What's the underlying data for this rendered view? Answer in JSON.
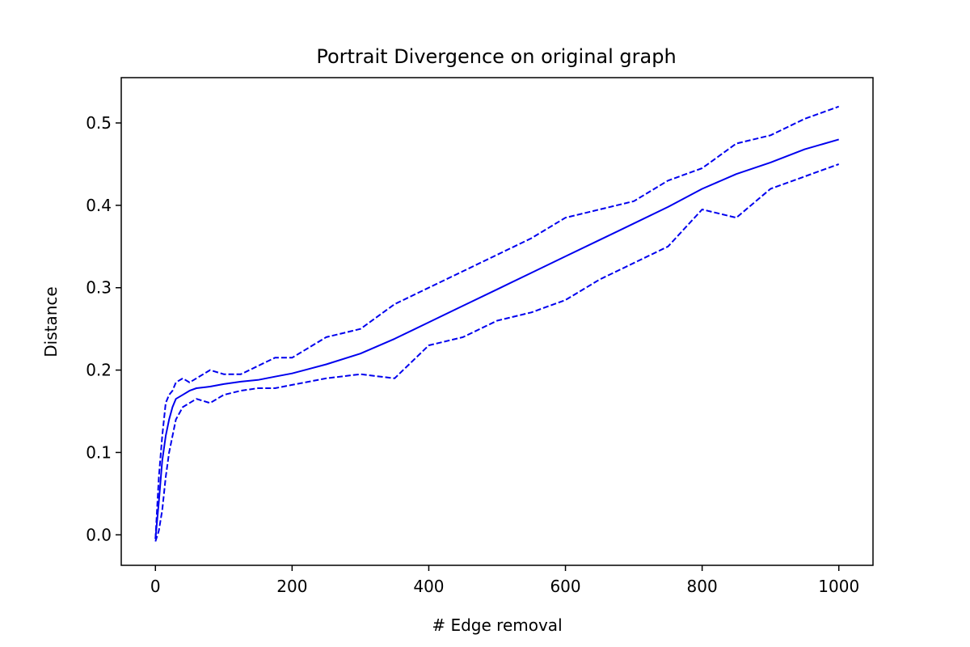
{
  "chart_data": {
    "type": "line",
    "title": "Portrait Divergence on original graph",
    "xlabel": "# Edge removal",
    "ylabel": "Distance",
    "xlim": [
      -50,
      1050
    ],
    "ylim": [
      -0.037,
      0.555
    ],
    "xticks": [
      0,
      200,
      400,
      600,
      800,
      1000
    ],
    "yticks": [
      0.0,
      0.1,
      0.2,
      0.3,
      0.4,
      0.5
    ],
    "xtick_labels": [
      "0",
      "200",
      "400",
      "600",
      "800",
      "1000"
    ],
    "ytick_labels": [
      "0.0",
      "0.1",
      "0.2",
      "0.3",
      "0.4",
      "0.5"
    ],
    "grid": false,
    "legend": false,
    "color": "#0000ee",
    "x": [
      0,
      5,
      10,
      15,
      20,
      25,
      30,
      40,
      50,
      60,
      80,
      100,
      125,
      150,
      175,
      200,
      250,
      300,
      350,
      400,
      450,
      500,
      550,
      600,
      650,
      700,
      750,
      800,
      850,
      900,
      950,
      1000
    ],
    "series": [
      {
        "style": "dashed",
        "values": [
          -0.005,
          0.07,
          0.12,
          0.16,
          0.17,
          0.175,
          0.185,
          0.19,
          0.185,
          0.19,
          0.2,
          0.195,
          0.195,
          0.205,
          0.215,
          0.215,
          0.24,
          0.25,
          0.28,
          0.3,
          0.32,
          0.34,
          0.36,
          0.385,
          0.395,
          0.405,
          0.43,
          0.445,
          0.475,
          0.485,
          0.505,
          0.52
        ]
      },
      {
        "style": "solid",
        "values": [
          -0.005,
          0.04,
          0.09,
          0.12,
          0.14,
          0.155,
          0.165,
          0.17,
          0.175,
          0.178,
          0.18,
          0.183,
          0.186,
          0.188,
          0.192,
          0.196,
          0.207,
          0.22,
          0.238,
          0.258,
          0.278,
          0.298,
          0.318,
          0.338,
          0.358,
          0.378,
          0.398,
          0.42,
          0.438,
          0.452,
          0.468,
          0.48
        ]
      },
      {
        "style": "dashed",
        "values": [
          -0.008,
          0.005,
          0.03,
          0.07,
          0.1,
          0.12,
          0.14,
          0.155,
          0.16,
          0.165,
          0.16,
          0.17,
          0.175,
          0.178,
          0.178,
          0.182,
          0.19,
          0.195,
          0.19,
          0.23,
          0.24,
          0.26,
          0.27,
          0.285,
          0.31,
          0.33,
          0.35,
          0.395,
          0.385,
          0.42,
          0.435,
          0.45
        ]
      }
    ]
  }
}
